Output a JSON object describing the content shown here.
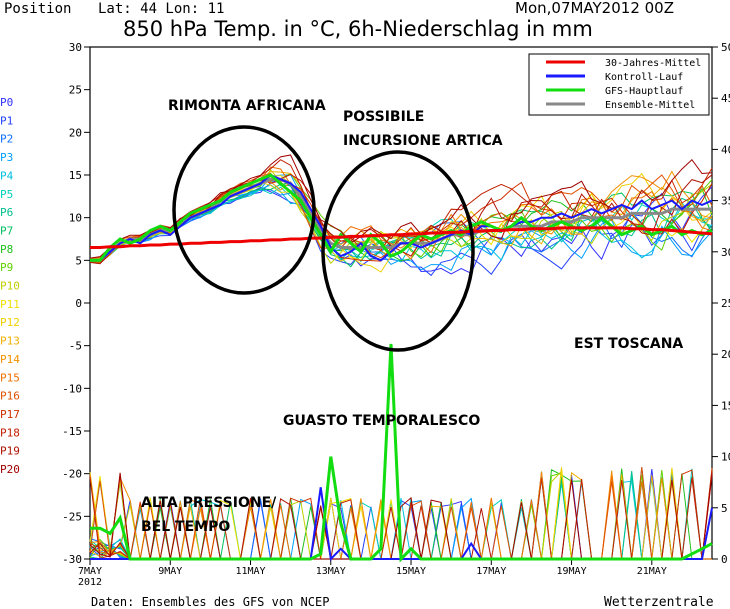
{
  "header": {
    "position_label": "Position",
    "lat_lon": "Lat: 44 Lon: 11",
    "title": "850 hPa Temp. in °C, 6h-Niederschlag in mm",
    "run": "Mon,07MAY2012 00Z"
  },
  "footer": {
    "source": "Daten: Ensembles des GFS von NCEP",
    "brand": "Wetterzentrale"
  },
  "members": [
    "P0",
    "P1",
    "P2",
    "P3",
    "P4",
    "P5",
    "P6",
    "P7",
    "P8",
    "P9",
    "P10",
    "P11",
    "P12",
    "P13",
    "P14",
    "P15",
    "P16",
    "P17",
    "P18",
    "P19",
    "P20"
  ],
  "member_colors": [
    "#3030ff",
    "#2040ff",
    "#1070ff",
    "#00a0ff",
    "#00c0e0",
    "#00d0c0",
    "#00c090",
    "#00c060",
    "#20c020",
    "#60d000",
    "#c0d000",
    "#f0e000",
    "#f0d000",
    "#f0b000",
    "#f09000",
    "#f07000",
    "#e05000",
    "#d03000",
    "#c02000",
    "#b01000",
    "#a00000"
  ],
  "legend": [
    {
      "label": "30-Jahres-Mittel",
      "color": "#ee0000"
    },
    {
      "label": "Kontroll-Lauf",
      "color": "#1a1aff"
    },
    {
      "label": "GFS-Hauptlauf",
      "color": "#11dd11"
    },
    {
      "label": "Ensemble-Mittel",
      "color": "#888888"
    }
  ],
  "annotations": {
    "rimonta": "RIMONTA AFRICANA",
    "possibile": "POSSIBILE",
    "incursione": "INCURSIONE ARTICA",
    "est_toscana": "EST TOSCANA",
    "guasto": "GUASTO TEMPORALESCO",
    "alta_1": "ALTA PRESSIONE/",
    "alta_2": "BEL TEMPO"
  },
  "chart_data": {
    "type": "line",
    "x_unit": "date (6-hourly, from 7 May 2012 00Z)",
    "x_ticks": [
      "7MAY 2012",
      "9MAY",
      "11MAY",
      "13MAY",
      "15MAY",
      "17MAY",
      "19MAY",
      "21MAY"
    ],
    "y_left": {
      "ticks": [
        30,
        25,
        20,
        15,
        10,
        5,
        0,
        -5,
        -10,
        -15,
        -20,
        -25,
        -30
      ],
      "range": [
        -30,
        30
      ],
      "unit": "°C"
    },
    "y_right": {
      "ticks": [
        50,
        45,
        40,
        35,
        30,
        25,
        20,
        15,
        10,
        5,
        0
      ],
      "range": [
        0,
        50
      ],
      "unit": "mm"
    },
    "temperature": {
      "climate_mean_30yr": [
        6.5,
        6.5,
        6.6,
        6.6,
        6.7,
        6.7,
        6.8,
        6.8,
        6.9,
        6.9,
        7.0,
        7.0,
        7.1,
        7.1,
        7.2,
        7.2,
        7.3,
        7.3,
        7.4,
        7.4,
        7.5,
        7.5,
        7.6,
        7.6,
        7.7,
        7.7,
        7.8,
        7.8,
        7.9,
        7.9,
        8.0,
        8.0,
        8.1,
        8.1,
        8.2,
        8.2,
        8.3,
        8.3,
        8.4,
        8.4,
        8.5,
        8.5,
        8.6,
        8.6,
        8.7,
        8.7,
        8.7,
        8.8,
        8.8,
        8.8,
        8.8,
        8.8,
        8.8,
        8.8,
        8.7,
        8.7,
        8.6,
        8.6,
        8.5,
        8.4,
        8.3,
        8.2,
        8.1
      ],
      "control_run": [
        5,
        5,
        6,
        7,
        7.5,
        7,
        8,
        8.5,
        8,
        9,
        10,
        10.5,
        11,
        11.5,
        12.5,
        13,
        13.5,
        14,
        15,
        14.5,
        14,
        13,
        11,
        9,
        6.5,
        5.5,
        6,
        7,
        5.5,
        5,
        6,
        7,
        7,
        6.5,
        7,
        7.5,
        8,
        8.5,
        8,
        9,
        9,
        8.5,
        9,
        9.5,
        9.5,
        10,
        10,
        10.5,
        10,
        10.5,
        11,
        10.5,
        11,
        11.5,
        11,
        12,
        11,
        11.5,
        12,
        11,
        12,
        11.5,
        12
      ],
      "gfs_main_run": [
        5,
        5,
        6.5,
        7.5,
        7,
        7.5,
        8.5,
        9,
        8.5,
        9.5,
        10.5,
        11,
        11.5,
        12,
        13,
        13.5,
        14,
        14.5,
        15,
        14,
        13,
        12,
        10,
        8,
        6,
        8,
        7,
        6,
        8,
        7,
        5.5,
        6,
        7,
        8,
        7.5,
        8,
        8.5,
        8,
        9,
        9.5,
        9,
        8.5,
        9,
        10,
        9,
        8.5,
        9,
        9.5,
        9,
        8.5,
        9,
        10,
        9,
        8,
        8.5,
        9,
        8,
        8.5,
        9,
        8,
        8.5,
        8,
        8.5
      ],
      "ensemble_mean": [
        5,
        5,
        6,
        7,
        7.5,
        7.5,
        8,
        8.5,
        8.5,
        9.5,
        10,
        10.5,
        11,
        12,
        12.5,
        13,
        13.5,
        14,
        14.5,
        14.5,
        14,
        12.5,
        10.5,
        8.5,
        7,
        6.5,
        6.5,
        6.5,
        6.5,
        6.5,
        6.5,
        7,
        7,
        7,
        7,
        7.5,
        8,
        8,
        8,
        8.5,
        8.5,
        8.5,
        9,
        9,
        9,
        9,
        9.5,
        9.5,
        9.5,
        10,
        10,
        10,
        10,
        10,
        10.5,
        10.5,
        10.5,
        10.5,
        11,
        11,
        11,
        11,
        11
      ]
    },
    "precipitation_mm": {
      "control_run": [
        0,
        0,
        0,
        0,
        0,
        0,
        0,
        0,
        0,
        0,
        0,
        0,
        0,
        0,
        0,
        0,
        0,
        0,
        0,
        0,
        0,
        0,
        0,
        7,
        0,
        1,
        0,
        0,
        0,
        0,
        0,
        0,
        0,
        0,
        0,
        0,
        0,
        0,
        1.5,
        0,
        0,
        0,
        0,
        0,
        0,
        0,
        0,
        0,
        0,
        0,
        0,
        0,
        0,
        0,
        0,
        0,
        0,
        0,
        0,
        0,
        0,
        0,
        5
      ],
      "gfs_main_run": [
        3,
        3,
        2.5,
        4,
        0,
        0,
        0,
        0,
        0,
        0,
        0,
        0,
        0,
        0,
        0,
        0,
        0,
        0,
        0,
        0,
        0,
        0,
        0,
        0.5,
        10,
        3.5,
        0,
        0,
        0,
        1,
        21,
        0,
        1,
        0,
        0,
        0,
        0,
        0,
        0,
        0,
        0,
        0,
        0,
        0,
        0,
        0,
        0,
        0,
        0,
        0,
        0,
        0,
        0,
        0,
        0,
        0,
        0,
        0,
        0,
        0,
        0.5,
        1,
        1.5
      ]
    },
    "legend_position": "top-right"
  }
}
